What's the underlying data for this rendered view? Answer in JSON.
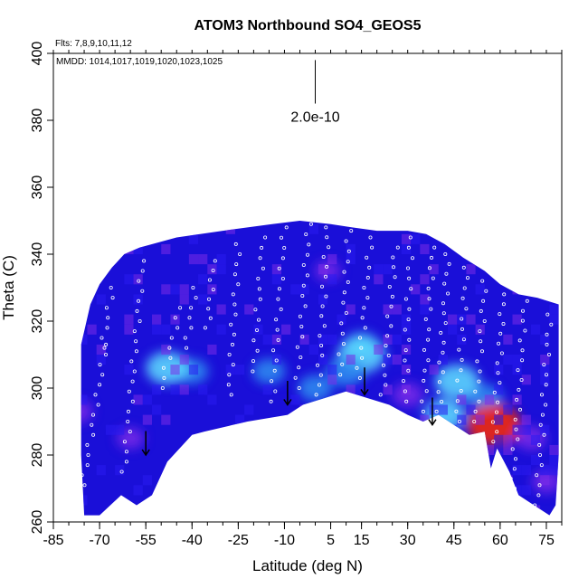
{
  "chart_data": {
    "type": "heatmap",
    "title": "ATOM3 Northbound SO4_GEOS5",
    "flights_note": "Flts: 7,8,9,10,11,12",
    "dates_note": "MMDD: 1014,1017,1019,1020,1023,1025",
    "xlabel": "Latitude (deg N)",
    "ylabel": "Theta (C)",
    "xlim": [
      -85,
      80
    ],
    "ylim": [
      260,
      400
    ],
    "x_tick_labels": [
      "-85",
      "-70",
      "-55",
      "-40",
      "-25",
      "-10",
      "5",
      "15",
      "30",
      "45",
      "60",
      "75"
    ],
    "x_ticks": [
      -85,
      -70,
      -55,
      -40,
      -25,
      -10,
      5,
      15,
      30,
      45,
      60,
      75
    ],
    "y_tick_labels": [
      "260",
      "280",
      "300",
      "320",
      "340",
      "360",
      "380",
      "400"
    ],
    "y_ticks": [
      260,
      280,
      300,
      320,
      340,
      360,
      380,
      400
    ],
    "scale_label": "2.0e-10",
    "scale_bar": {
      "x": 0,
      "y_from": 385,
      "y_to": 398
    },
    "colors": {
      "base": "#1a0fd8",
      "low": "#7a2ce8",
      "mid": "#2e8ff0",
      "high": "#5fe0ff",
      "peak": "#ff2a00"
    },
    "upper_boundary": [
      [
        -76,
        313
      ],
      [
        -73,
        325
      ],
      [
        -70,
        331
      ],
      [
        -66,
        336
      ],
      [
        -62,
        340
      ],
      [
        -57,
        342
      ],
      [
        -45,
        345
      ],
      [
        -30,
        347
      ],
      [
        -22,
        348
      ],
      [
        -14,
        349
      ],
      [
        -5,
        350
      ],
      [
        5,
        349
      ],
      [
        12,
        348
      ],
      [
        20,
        347
      ],
      [
        30,
        347
      ],
      [
        36,
        346
      ],
      [
        42,
        343
      ],
      [
        48,
        339
      ],
      [
        55,
        335
      ],
      [
        60,
        331
      ],
      [
        66,
        328
      ],
      [
        72,
        327
      ],
      [
        79,
        325
      ]
    ],
    "lower_boundary": [
      [
        79,
        280
      ],
      [
        78,
        265
      ],
      [
        76,
        262
      ],
      [
        71,
        265
      ],
      [
        66,
        268
      ],
      [
        63,
        275
      ],
      [
        59,
        282
      ],
      [
        57,
        276
      ],
      [
        55,
        287
      ],
      [
        50,
        286
      ],
      [
        45,
        289
      ],
      [
        40,
        292
      ],
      [
        35,
        290
      ],
      [
        30,
        292
      ],
      [
        24,
        295
      ],
      [
        17,
        297
      ],
      [
        10,
        299
      ],
      [
        3,
        297
      ],
      [
        -4,
        295
      ],
      [
        -9,
        292
      ],
      [
        -22,
        290
      ],
      [
        -36,
        287
      ],
      [
        -40,
        286
      ],
      [
        -48,
        278
      ],
      [
        -53,
        268
      ],
      [
        -58,
        265
      ],
      [
        -63,
        268
      ],
      [
        -70,
        262
      ],
      [
        -75,
        262
      ],
      [
        -76,
        280
      ]
    ],
    "hotspots": [
      {
        "x": -77,
        "y": 293,
        "value": 0.25
      },
      {
        "x": -40,
        "y": 305,
        "value": 0.35
      },
      {
        "x": -15,
        "y": 305,
        "value": 0.35
      },
      {
        "x": 0,
        "y": 300,
        "value": 0.4
      },
      {
        "x": 15,
        "y": 313,
        "value": 0.35
      },
      {
        "x": 30,
        "y": 298,
        "value": 0.3
      },
      {
        "x": 55,
        "y": 297,
        "value": 0.45
      },
      {
        "x": 70,
        "y": 285,
        "value": 0.3
      },
      {
        "x": 75,
        "y": 272,
        "value": 0.25
      },
      {
        "x": -48,
        "y": 306,
        "value": 0.65
      },
      {
        "x": 15,
        "y": 310,
        "value": 0.8
      },
      {
        "x": 10,
        "y": 305,
        "value": 0.55
      },
      {
        "x": 46,
        "y": 302,
        "value": 0.7
      },
      {
        "x": 42,
        "y": 292,
        "value": 0.6
      },
      {
        "x": 58,
        "y": 289,
        "value": 1.0
      },
      {
        "x": 4,
        "y": 335,
        "value": 0.15
      },
      {
        "x": -60,
        "y": 285,
        "value": 0.2
      }
    ],
    "flight_arrows": [
      {
        "x": -55,
        "y_from": 285,
        "y_to": 280
      },
      {
        "x": -9,
        "y_from": 300,
        "y_to": 295
      },
      {
        "x": 16,
        "y_from": 304,
        "y_to": 298
      },
      {
        "x": 38,
        "y_from": 295,
        "y_to": 289
      }
    ],
    "point_rows": [
      {
        "lat_start": -76,
        "lat_end": -68,
        "theta_start": 268,
        "theta_end": 313
      },
      {
        "lat_start": -69,
        "lat_end": -66,
        "theta_start": 312,
        "theta_end": 330
      },
      {
        "lat_start": -62,
        "lat_end": -56,
        "theta_start": 275,
        "theta_end": 338
      },
      {
        "lat_start": -50,
        "lat_end": -44,
        "theta_start": 300,
        "theta_end": 324
      },
      {
        "lat_start": -42,
        "lat_end": -39,
        "theta_start": 312,
        "theta_end": 330
      },
      {
        "lat_start": -35,
        "lat_end": -33,
        "theta_start": 318,
        "theta_end": 338
      },
      {
        "lat_start": -28,
        "lat_end": -25,
        "theta_start": 298,
        "theta_end": 343
      },
      {
        "lat_start": -20,
        "lat_end": -17,
        "theta_start": 305,
        "theta_end": 345
      },
      {
        "lat_start": -14,
        "lat_end": -10,
        "theta_start": 296,
        "theta_end": 348
      },
      {
        "lat_start": -6,
        "lat_end": -2,
        "theta_start": 300,
        "theta_end": 349
      },
      {
        "lat_start": 1,
        "lat_end": 4,
        "theta_start": 298,
        "theta_end": 348
      },
      {
        "lat_start": 8,
        "lat_end": 11,
        "theta_start": 304,
        "theta_end": 347
      },
      {
        "lat_start": 14,
        "lat_end": 18,
        "theta_start": 303,
        "theta_end": 345
      },
      {
        "lat_start": 22,
        "lat_end": 26,
        "theta_start": 298,
        "theta_end": 342
      },
      {
        "lat_start": 29,
        "lat_end": 31,
        "theta_start": 296,
        "theta_end": 345
      },
      {
        "lat_start": 35,
        "lat_end": 38,
        "theta_start": 293,
        "theta_end": 342
      },
      {
        "lat_start": 40,
        "lat_end": 43,
        "theta_start": 293,
        "theta_end": 340
      },
      {
        "lat_start": 46,
        "lat_end": 49,
        "theta_start": 290,
        "theta_end": 336
      },
      {
        "lat_start": 52,
        "lat_end": 55,
        "theta_start": 290,
        "theta_end": 332
      },
      {
        "lat_start": 58,
        "lat_end": 61,
        "theta_start": 284,
        "theta_end": 328
      },
      {
        "lat_start": 64,
        "lat_end": 68,
        "theta_start": 270,
        "theta_end": 326
      },
      {
        "lat_start": 72,
        "lat_end": 76,
        "theta_start": 265,
        "theta_end": 322
      }
    ]
  }
}
